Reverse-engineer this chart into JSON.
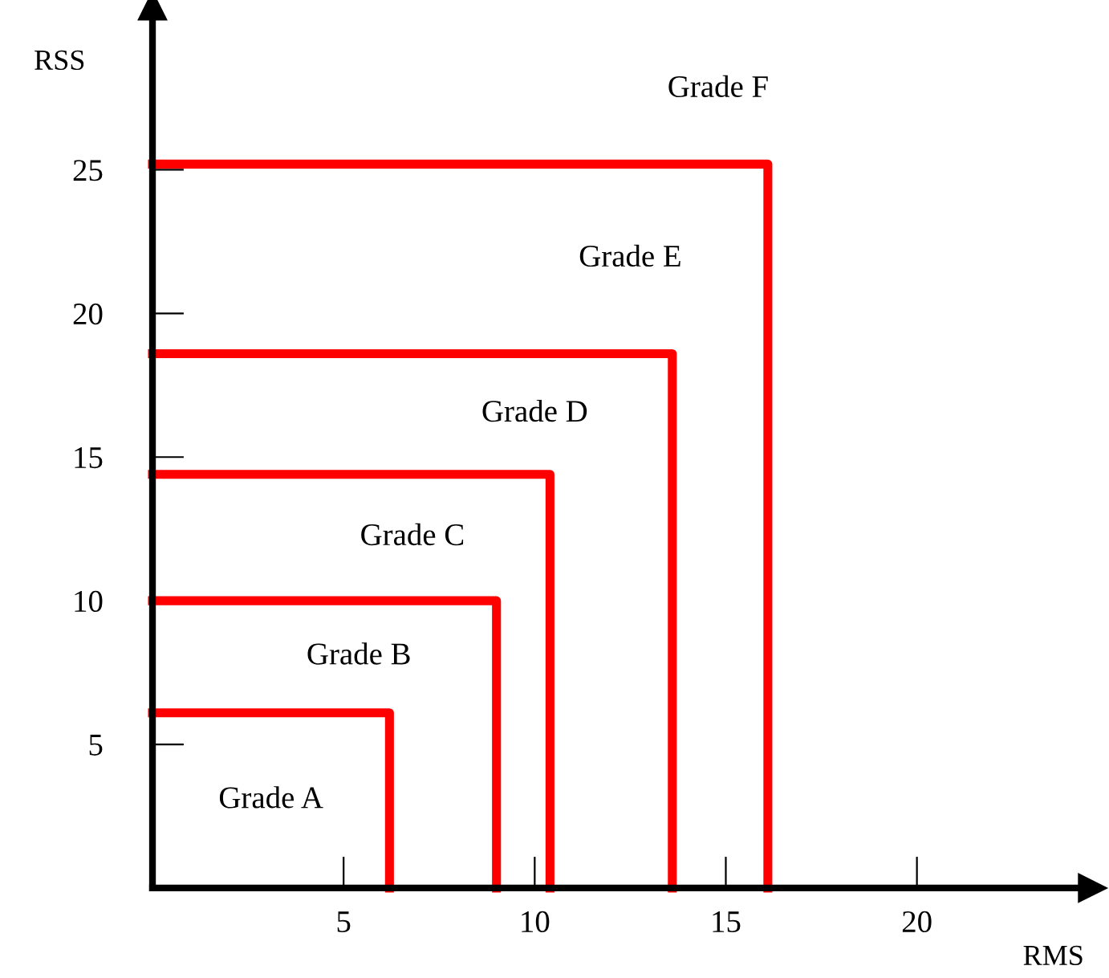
{
  "chart_data": {
    "type": "line",
    "xlabel": "RMS",
    "ylabel": "RSS",
    "series": [
      {
        "color": "#ff0000",
        "x": [
          0,
          6.2,
          6.2
        ],
        "values": [
          6.1,
          6.1,
          0
        ]
      },
      {
        "color": "#ff0000",
        "x": [
          0,
          9.0,
          9.0
        ],
        "values": [
          10,
          10,
          0
        ]
      },
      {
        "color": "#ff0000",
        "x": [
          0,
          10.4,
          10.4
        ],
        "values": [
          14.4,
          14.4,
          0
        ]
      },
      {
        "color": "#ff0000",
        "x": [
          0,
          13.6,
          13.6
        ],
        "values": [
          18.6,
          18.6,
          0
        ]
      },
      {
        "color": "#ff0000",
        "x": [
          0,
          16.1,
          16.1
        ],
        "values": [
          25.2,
          25.2,
          0
        ]
      }
    ],
    "annotations": [
      "Grade A",
      "Grade B",
      "Grade C",
      "Grade D",
      "Grade E",
      "Grade F"
    ],
    "xlim": [
      0,
      24.3
    ],
    "ylim": [
      0,
      30.4
    ],
    "xticks": [
      5,
      10,
      15,
      20
    ],
    "yticks": [
      5,
      10,
      15,
      20,
      25
    ],
    "grid": false,
    "legend": false,
    "marker": "none",
    "line_style": "solid"
  }
}
